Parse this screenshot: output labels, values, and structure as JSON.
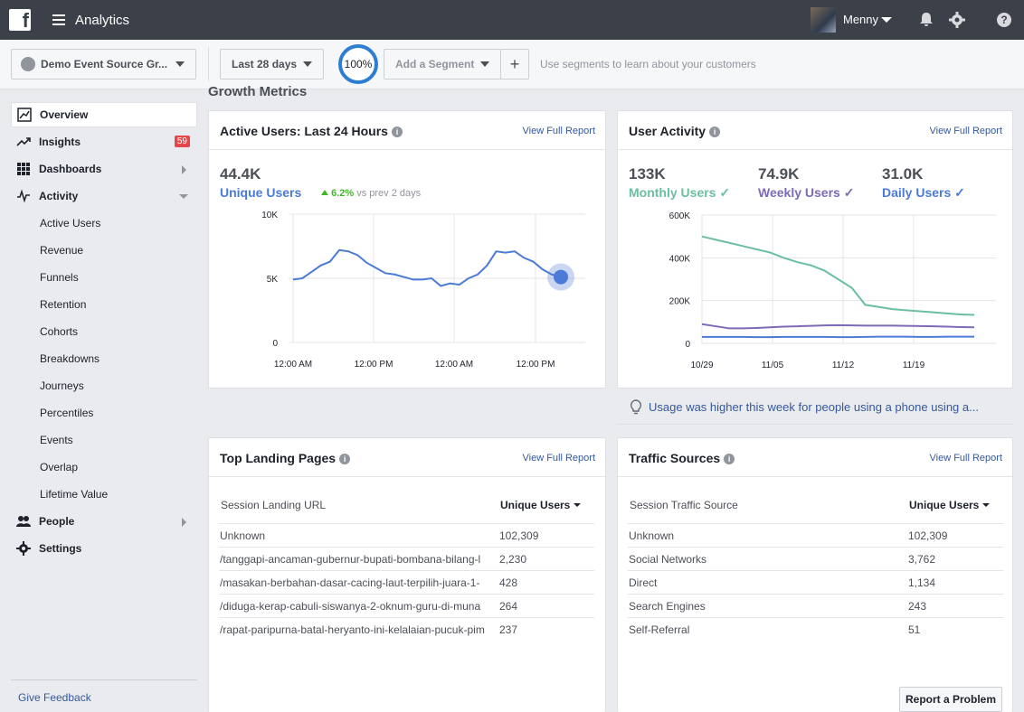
{
  "header": {
    "app_title": "Analytics",
    "user_name": "Menny",
    "logo_icon": "facebook-logo-icon"
  },
  "segment_bar": {
    "source": "Demo Event Source Gr...",
    "date_range": "Last 28 days",
    "percent": "100%",
    "add_segment": "Add a Segment",
    "add_symbol": "+",
    "hint": "Use segments to learn about your customers"
  },
  "sidebar": {
    "items": [
      {
        "label": "Overview",
        "icon": "chart-line-icon"
      },
      {
        "label": "Insights",
        "icon": "trend-icon",
        "badge": "59"
      },
      {
        "label": "Dashboards",
        "icon": "grid-icon"
      },
      {
        "label": "Activity",
        "icon": "pulse-icon"
      },
      {
        "label": "People",
        "icon": "people-icon"
      },
      {
        "label": "Settings",
        "icon": "gear-icon"
      }
    ],
    "activity_sub": [
      "Active Users",
      "Revenue",
      "Funnels",
      "Retention",
      "Cohorts",
      "Breakdowns",
      "Journeys",
      "Percentiles",
      "Events",
      "Overlap",
      "Lifetime Value"
    ],
    "feedback": "Give Feedback"
  },
  "main": {
    "section_title": "Growth Metrics",
    "view_full_report": "View Full Report",
    "active_users": {
      "title": "Active Users: Last 24 Hours",
      "value": "44.4K",
      "label": "Unique Users",
      "change": "6.2%",
      "change_suffix": "vs prev 2 days"
    },
    "user_activity": {
      "title": "User Activity",
      "monthly_value": "133K",
      "monthly_label": "Monthly Users",
      "weekly_value": "74.9K",
      "weekly_label": "Weekly Users",
      "daily_value": "31.0K",
      "daily_label": "Daily Users"
    },
    "usage_hint": "Usage was higher this week for people using a phone using a...",
    "landing_pages": {
      "title": "Top Landing Pages",
      "col1": "Session Landing URL",
      "col2": "Unique Users",
      "rows": [
        {
          "url": "Unknown",
          "users": "102,309"
        },
        {
          "url": "/tanggapi-ancaman-gubernur-bupati-bombana-bilang-l",
          "users": "2,230"
        },
        {
          "url": "/masakan-berbahan-dasar-cacing-laut-terpilih-juara-1-",
          "users": "428"
        },
        {
          "url": "/diduga-kerap-cabuli-siswanya-2-oknum-guru-di-muna",
          "users": "264"
        },
        {
          "url": "/rapat-paripurna-batal-heryanto-ini-kelalaian-pucuk-pim",
          "users": "237"
        }
      ]
    },
    "traffic_sources": {
      "title": "Traffic Sources",
      "col1": "Session Traffic Source",
      "col2": "Unique Users",
      "rows": [
        {
          "source": "Unknown",
          "users": "102,309"
        },
        {
          "source": "Social Networks",
          "users": "3,762"
        },
        {
          "source": "Direct",
          "users": "1,134"
        },
        {
          "source": "Search Engines",
          "users": "243"
        },
        {
          "source": "Self-Referral",
          "users": "51"
        }
      ]
    },
    "report_problem": "Report a Problem"
  },
  "colors": {
    "topbar": "#3b4049",
    "link": "#365899",
    "accent_blue": "#2d7dd2",
    "monthly": "#6bbf9f",
    "weekly": "#7e6ab9",
    "daily": "#4b7bd6",
    "positive": "#42b72a"
  },
  "chart_data": [
    {
      "type": "line",
      "title": "",
      "x_tick_labels": [
        "12:00 AM",
        "12:00 PM",
        "12:00 AM",
        "12:00 PM"
      ],
      "ylim": [
        0,
        10000
      ],
      "y_ticks": [
        "0",
        "5K",
        "10K"
      ],
      "series": [
        {
          "name": "Unique Users",
          "values": [
            4900,
            5000,
            5500,
            6000,
            6300,
            7200,
            7100,
            6800,
            6200,
            5800,
            5400,
            5300,
            5100,
            4900,
            4900,
            5000,
            4400,
            4600,
            4500,
            5000,
            5300,
            6000,
            7100,
            7000,
            7100,
            6600,
            6300,
            5700,
            5300,
            5100
          ]
        }
      ]
    },
    {
      "type": "line",
      "title": "",
      "x_tick_labels": [
        "10/29",
        "11/05",
        "11/12",
        "11/19"
      ],
      "ylim": [
        0,
        600000
      ],
      "y_ticks": [
        "0",
        "200K",
        "400K",
        "600K"
      ],
      "series": [
        {
          "name": "Monthly Users",
          "values": [
            500000,
            485000,
            470000,
            455000,
            440000,
            425000,
            400000,
            380000,
            365000,
            340000,
            300000,
            260000,
            180000,
            170000,
            160000,
            155000,
            150000,
            145000,
            140000,
            135000,
            133000
          ]
        },
        {
          "name": "Weekly Users",
          "values": [
            90000,
            80000,
            70000,
            70000,
            72000,
            75000,
            78000,
            80000,
            82000,
            84000,
            85000,
            84000,
            83000,
            83000,
            83000,
            82000,
            81000,
            80000,
            78000,
            76000,
            74900
          ]
        },
        {
          "name": "Daily Users",
          "values": [
            30000,
            30000,
            30000,
            30000,
            29000,
            29000,
            30000,
            30000,
            30000,
            30000,
            29000,
            29000,
            30000,
            31000,
            31000,
            31000,
            30000,
            30000,
            31000,
            31000,
            31000
          ]
        }
      ]
    }
  ]
}
